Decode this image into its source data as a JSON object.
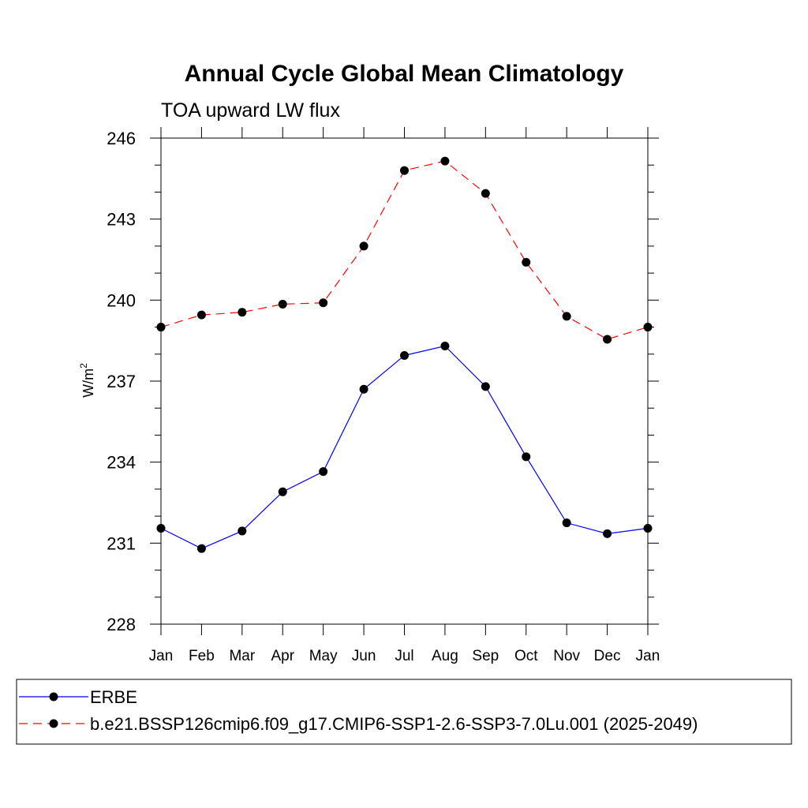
{
  "chart_data": {
    "type": "line",
    "title": "Annual Cycle Global Mean Climatology",
    "subtitle": "TOA upward LW flux",
    "ylabel": "W/m",
    "ylabel_superscript": "2",
    "ylim": [
      228,
      246
    ],
    "yticks": [
      228,
      231,
      234,
      237,
      240,
      243,
      246
    ],
    "categories": [
      "Jan",
      "Feb",
      "Mar",
      "Apr",
      "May",
      "Jun",
      "Jul",
      "Aug",
      "Sep",
      "Oct",
      "Nov",
      "Dec",
      "Jan"
    ],
    "series": [
      {
        "name": "ERBE",
        "color": "#0000ff",
        "dash": "solid",
        "values": [
          231.55,
          230.8,
          231.45,
          232.9,
          233.65,
          236.7,
          237.95,
          238.3,
          236.8,
          234.2,
          231.75,
          231.35,
          231.55
        ]
      },
      {
        "name": "b.e21.BSSP126cmip6.f09_g17.CMIP6-SSP1-2.6-SSP3-7.0Lu.001 (2025-2049)",
        "color": "#ff0000",
        "dash": "dashed",
        "values": [
          239.0,
          239.45,
          239.55,
          239.85,
          239.9,
          242.0,
          244.8,
          245.15,
          243.95,
          241.4,
          239.4,
          238.55,
          239.0
        ]
      }
    ],
    "grid": false,
    "legend_position": "bottom"
  }
}
